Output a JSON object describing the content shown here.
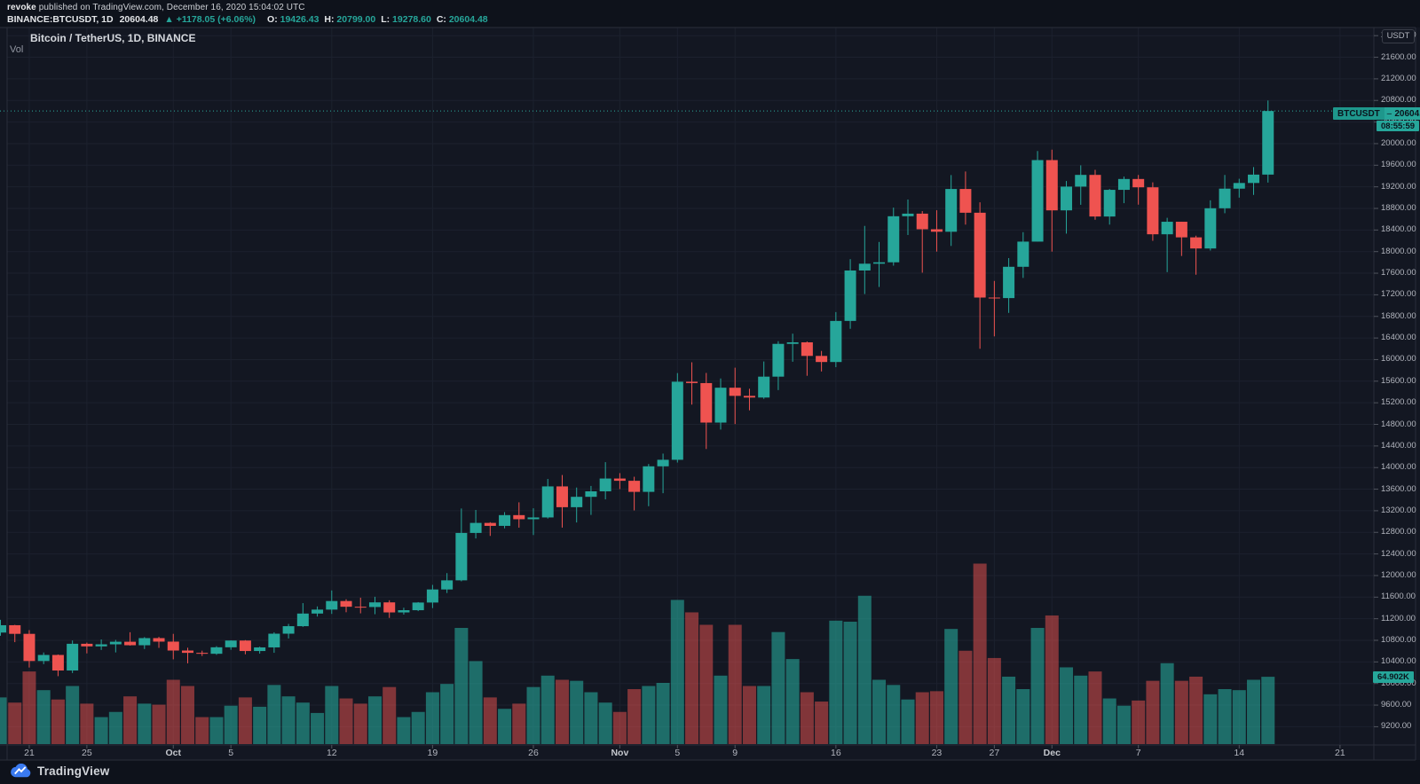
{
  "header": {
    "byline_author": "revoke",
    "byline_rest": " published on TradingView.com, December 16, 2020 15:04:02 UTC",
    "symbol": "BINANCE:BTCUSDT, 1D",
    "last_price": "20604.48",
    "change": "▲ +1178.05 (+6.06%)",
    "ohlc": [
      {
        "label": "O:",
        "value": "19426.43"
      },
      {
        "label": "H:",
        "value": "20799.00"
      },
      {
        "label": "L:",
        "value": "19278.60"
      },
      {
        "label": "C:",
        "value": "20604.48"
      }
    ]
  },
  "legend": {
    "series_title": "Bitcoin / TetherUS, 1D, BINANCE",
    "volume_label": "Vol"
  },
  "price_scale": {
    "currency_button": "USDT",
    "price_badge_symbol": "BTCUSDT",
    "price_badge_value": "20604.48",
    "countdown_badge": "08:55:59",
    "volume_badge": "64.902K"
  },
  "footer": {
    "brand": "TradingView"
  },
  "colors": {
    "bg": "#131722",
    "grid": "#1c212e",
    "border": "#2a2e39",
    "axis_text": "#b2b5be",
    "tick": "#50545e",
    "up": "#26a69a",
    "down": "#ef5350",
    "vol_up": "rgba(38,166,154,0.6)",
    "vol_down": "rgba(239,83,80,0.5)",
    "price_line": "#2bab9f",
    "badge_bg": "#26a69a",
    "brand_blue": "#3a7af0"
  },
  "chart_data": {
    "type": "candlestick+volume",
    "title": "Bitcoin / TetherUS, 1D, BINANCE",
    "exchange": "BINANCE",
    "interval": "1D",
    "ylabel": "USDT",
    "ylim": [
      9200,
      22000
    ],
    "ytick_step": 400,
    "last_price": 20604.48,
    "volume_axis_note": "volumes in thousands (K)",
    "time_ticks": [
      {
        "label": "21",
        "day": 2
      },
      {
        "label": "25",
        "day": 6
      },
      {
        "label": "Oct",
        "day": 12,
        "month": true
      },
      {
        "label": "5",
        "day": 16
      },
      {
        "label": "12",
        "day": 23
      },
      {
        "label": "19",
        "day": 30
      },
      {
        "label": "26",
        "day": 37
      },
      {
        "label": "Nov",
        "day": 43,
        "month": true
      },
      {
        "label": "5",
        "day": 47
      },
      {
        "label": "9",
        "day": 51
      },
      {
        "label": "16",
        "day": 58
      },
      {
        "label": "23",
        "day": 65
      },
      {
        "label": "27",
        "day": 69
      },
      {
        "label": "Dec",
        "day": 73,
        "month": true
      },
      {
        "label": "7",
        "day": 79
      },
      {
        "label": "14",
        "day": 86
      },
      {
        "label": "21",
        "day": 93
      }
    ],
    "candles": [
      [
        "Sep 19",
        10944,
        11179,
        10885,
        11080,
        45
      ],
      [
        "Sep 20",
        11080,
        11087,
        10766,
        10920,
        40
      ],
      [
        "Sep 21",
        10920,
        10989,
        10296,
        10417,
        70
      ],
      [
        "Sep 22",
        10417,
        10575,
        10359,
        10529,
        52
      ],
      [
        "Sep 23",
        10529,
        10538,
        10136,
        10241,
        43
      ],
      [
        "Sep 24",
        10241,
        10797,
        10194,
        10736,
        56
      ],
      [
        "Sep 25",
        10736,
        10758,
        10558,
        10688,
        39
      ],
      [
        "Sep 26",
        10688,
        10816,
        10622,
        10726,
        26
      ],
      [
        "Sep 27",
        10726,
        10808,
        10576,
        10774,
        31
      ],
      [
        "Sep 28",
        10774,
        10950,
        10702,
        10709,
        46
      ],
      [
        "Sep 29",
        10709,
        10860,
        10639,
        10841,
        39
      ],
      [
        "Sep 30",
        10841,
        10864,
        10660,
        10776,
        38
      ],
      [
        "Oct 1",
        10776,
        10920,
        10448,
        10611,
        62
      ],
      [
        "Oct 2",
        10611,
        10663,
        10374,
        10568,
        56
      ],
      [
        "Oct 3",
        10568,
        10608,
        10510,
        10551,
        26
      ],
      [
        "Oct 4",
        10551,
        10692,
        10531,
        10671,
        26
      ],
      [
        "Oct 5",
        10671,
        10800,
        10625,
        10796,
        37
      ],
      [
        "Oct 6",
        10796,
        10804,
        10541,
        10602,
        45
      ],
      [
        "Oct 7",
        10602,
        10682,
        10553,
        10669,
        36
      ],
      [
        "Oct 8",
        10669,
        10949,
        10569,
        10923,
        57
      ],
      [
        "Oct 9",
        10923,
        11104,
        10834,
        11062,
        46
      ],
      [
        "Oct 10",
        11062,
        11489,
        11049,
        11296,
        40
      ],
      [
        "Oct 11",
        11296,
        11428,
        11240,
        11369,
        30
      ],
      [
        "Oct 12",
        11369,
        11724,
        11289,
        11528,
        56
      ],
      [
        "Oct 13",
        11528,
        11561,
        11320,
        11422,
        44
      ],
      [
        "Oct 14",
        11422,
        11590,
        11300,
        11417,
        39
      ],
      [
        "Oct 15",
        11417,
        11607,
        11284,
        11503,
        46
      ],
      [
        "Oct 16",
        11503,
        11542,
        11215,
        11317,
        55
      ],
      [
        "Oct 17",
        11317,
        11404,
        11277,
        11358,
        26
      ],
      [
        "Oct 18",
        11358,
        11508,
        11341,
        11500,
        31
      ],
      [
        "Oct 19",
        11500,
        11827,
        11397,
        11742,
        50
      ],
      [
        "Oct 20",
        11742,
        12045,
        11676,
        11911,
        58
      ],
      [
        "Oct 21",
        11911,
        13242,
        11893,
        12789,
        112
      ],
      [
        "Oct 22",
        12789,
        13215,
        12687,
        12975,
        80
      ],
      [
        "Oct 23",
        12975,
        12988,
        12734,
        12920,
        45
      ],
      [
        "Oct 24",
        12920,
        13175,
        12874,
        13119,
        34
      ],
      [
        "Oct 25",
        13119,
        13356,
        12887,
        13043,
        39
      ],
      [
        "Oct 26",
        13043,
        13246,
        12750,
        13076,
        55
      ],
      [
        "Oct 27",
        13076,
        13789,
        13056,
        13651,
        66
      ],
      [
        "Oct 28",
        13651,
        13862,
        12888,
        13266,
        62
      ],
      [
        "Oct 29",
        13266,
        13630,
        12983,
        13458,
        61
      ],
      [
        "Oct 30",
        13458,
        13660,
        13123,
        13560,
        50
      ],
      [
        "Oct 31",
        13560,
        14100,
        13411,
        13797,
        40
      ],
      [
        "Nov 1",
        13797,
        13897,
        13601,
        13755,
        31
      ],
      [
        "Nov 2",
        13755,
        13830,
        13206,
        13550,
        53
      ],
      [
        "Nov 3",
        13550,
        14066,
        13284,
        14023,
        56
      ],
      [
        "Nov 4",
        14023,
        14259,
        13525,
        14144,
        59
      ],
      [
        "Nov 5",
        14144,
        15750,
        14093,
        15590,
        139
      ],
      [
        "Nov 6",
        15590,
        15950,
        15166,
        15565,
        127
      ],
      [
        "Nov 7",
        15565,
        15753,
        14344,
        14833,
        115
      ],
      [
        "Nov 8",
        14833,
        15650,
        14703,
        15479,
        66
      ],
      [
        "Nov 9",
        15479,
        15850,
        14805,
        15328,
        115
      ],
      [
        "Nov 10",
        15328,
        15460,
        15060,
        15297,
        56
      ],
      [
        "Nov 11",
        15297,
        15965,
        15273,
        15684,
        56
      ],
      [
        "Nov 12",
        15684,
        16340,
        15435,
        16291,
        108
      ],
      [
        "Nov 13",
        16291,
        16480,
        15960,
        16320,
        82
      ],
      [
        "Nov 14",
        16320,
        16335,
        15700,
        16068,
        50
      ],
      [
        "Nov 15",
        16068,
        16160,
        15780,
        15955,
        41
      ],
      [
        "Nov 16",
        15955,
        16880,
        15860,
        16716,
        119
      ],
      [
        "Nov 17",
        16716,
        17860,
        16570,
        17650,
        118
      ],
      [
        "Nov 18",
        17650,
        18476,
        17214,
        17776,
        143
      ],
      [
        "Nov 19",
        17776,
        18179,
        17345,
        17802,
        62
      ],
      [
        "Nov 20",
        17802,
        18815,
        17740,
        18655,
        57
      ],
      [
        "Nov 21",
        18655,
        18965,
        18308,
        18703,
        43
      ],
      [
        "Nov 22",
        18703,
        18750,
        17610,
        18414,
        50
      ],
      [
        "Nov 23",
        18414,
        18766,
        18000,
        18368,
        51
      ],
      [
        "Nov 24",
        18368,
        19418,
        18105,
        19160,
        111
      ],
      [
        "Nov 25",
        19160,
        19484,
        18500,
        18720,
        90
      ],
      [
        "Nov 26",
        18720,
        18913,
        16200,
        17149,
        174
      ],
      [
        "Nov 27",
        17149,
        17457,
        16430,
        17139,
        83
      ],
      [
        "Nov 28",
        17139,
        17880,
        16865,
        17719,
        65
      ],
      [
        "Nov 29",
        17719,
        18360,
        17513,
        18185,
        53
      ],
      [
        "Nov 30",
        18185,
        19863,
        18185,
        19695,
        112
      ],
      [
        "Dec 1",
        19695,
        19888,
        18000,
        18764,
        124
      ],
      [
        "Dec 2",
        18764,
        19308,
        18333,
        19204,
        74
      ],
      [
        "Dec 3",
        19204,
        19598,
        18867,
        19421,
        66
      ],
      [
        "Dec 4",
        19421,
        19515,
        18590,
        18650,
        70
      ],
      [
        "Dec 5",
        18650,
        19160,
        18500,
        19144,
        44
      ],
      [
        "Dec 6",
        19144,
        19390,
        18897,
        19345,
        37
      ],
      [
        "Dec 7",
        19345,
        19420,
        18870,
        19191,
        42
      ],
      [
        "Dec 8",
        19191,
        19283,
        18200,
        18321,
        61
      ],
      [
        "Dec 9",
        18321,
        18626,
        17620,
        18553,
        78
      ],
      [
        "Dec 10",
        18553,
        18553,
        17919,
        18264,
        61
      ],
      [
        "Dec 11",
        18264,
        18295,
        17572,
        18058,
        65
      ],
      [
        "Dec 12",
        18058,
        18950,
        18020,
        18803,
        48
      ],
      [
        "Dec 13",
        18803,
        19420,
        18711,
        19166,
        53
      ],
      [
        "Dec 14",
        19166,
        19349,
        19000,
        19271,
        52
      ],
      [
        "Dec 15",
        19271,
        19566,
        19050,
        19426,
        62
      ],
      [
        "Dec 16",
        19426.43,
        20799.0,
        19278.6,
        20604.48,
        64.902
      ]
    ]
  }
}
